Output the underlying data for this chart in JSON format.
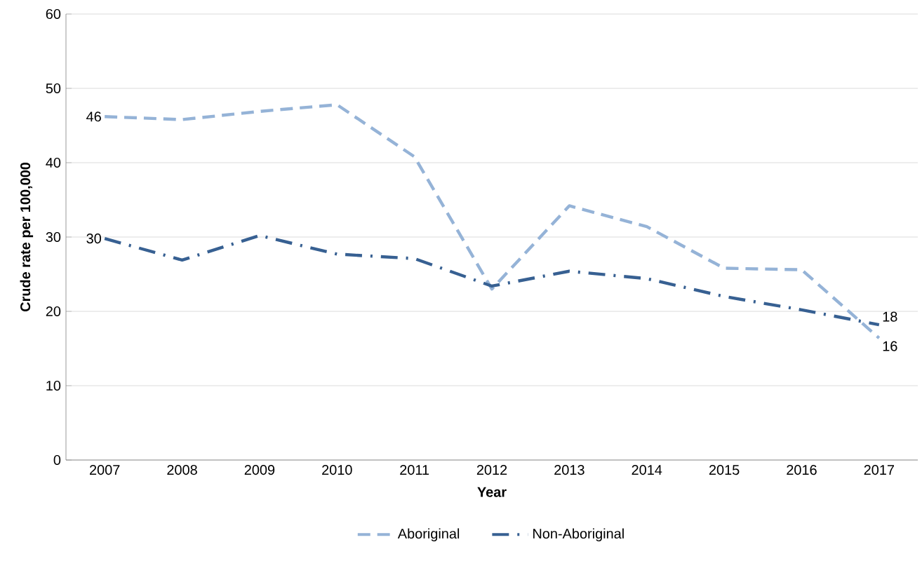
{
  "chart_data": {
    "type": "line",
    "xlabel": "Year",
    "ylabel": "Crude rate per 100,000",
    "categories": [
      "2007",
      "2008",
      "2009",
      "2010",
      "2011",
      "2012",
      "2013",
      "2014",
      "2015",
      "2016",
      "2017"
    ],
    "series": [
      {
        "name": "Aboriginal",
        "color": "#95b3d7",
        "line_style": "dashed",
        "values": [
          46.2,
          45.8,
          46.9,
          47.8,
          40.8,
          23.0,
          34.2,
          31.4,
          25.8,
          25.6,
          16.4
        ],
        "value_labels": [
          "46",
          null,
          null,
          null,
          null,
          null,
          null,
          null,
          null,
          null,
          "16"
        ]
      },
      {
        "name": "Non-Aboriginal",
        "color": "#376092",
        "line_style": "dashdot",
        "values": [
          29.8,
          26.9,
          30.2,
          27.7,
          27.1,
          23.4,
          25.4,
          24.4,
          22.0,
          20.2,
          18.2
        ],
        "value_labels": [
          "30",
          null,
          null,
          null,
          null,
          null,
          null,
          null,
          null,
          null,
          "18"
        ]
      }
    ],
    "ylim": [
      0,
      60
    ],
    "yticks": [
      0,
      10,
      20,
      30,
      40,
      50,
      60
    ],
    "grid": "y",
    "legend": "bottom",
    "marker": "none"
  }
}
